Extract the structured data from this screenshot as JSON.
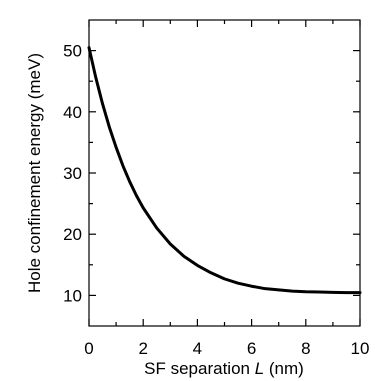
{
  "chart_data": {
    "type": "line",
    "title": "",
    "xlabel": {
      "prefix": "SF separation ",
      "italic": "L",
      "suffix": " (nm)"
    },
    "ylabel": "Hole confinement energy (meV)",
    "xlim": [
      0,
      10
    ],
    "ylim": [
      5,
      55
    ],
    "x_major_ticks": [
      0,
      2,
      4,
      6,
      8,
      10
    ],
    "x_tick_labels": [
      "0",
      "2",
      "4",
      "6",
      "8",
      "10"
    ],
    "x_minor_ticks": [
      1,
      3,
      5,
      7,
      9
    ],
    "y_major_ticks": [
      10,
      20,
      30,
      40,
      50
    ],
    "y_tick_labels": [
      "10",
      "20",
      "30",
      "40",
      "50"
    ],
    "y_minor_ticks": [
      15,
      25,
      35,
      45
    ],
    "grid": false,
    "legend": "none",
    "line_color": "#000000",
    "series": [
      {
        "x": [
          0,
          0.25,
          0.5,
          0.75,
          1,
          1.25,
          1.5,
          1.75,
          2,
          2.5,
          3,
          3.5,
          4,
          4.5,
          5,
          5.5,
          6,
          6.5,
          7,
          7.5,
          8,
          8.5,
          9,
          9.5,
          10
        ],
        "y": [
          50.5,
          45.6,
          41.3,
          37.5,
          34.2,
          31.2,
          28.6,
          26.3,
          24.3,
          21.0,
          18.4,
          16.4,
          14.9,
          13.7,
          12.7,
          12.0,
          11.5,
          11.1,
          10.9,
          10.7,
          10.6,
          10.55,
          10.5,
          10.45,
          10.45
        ]
      }
    ]
  }
}
